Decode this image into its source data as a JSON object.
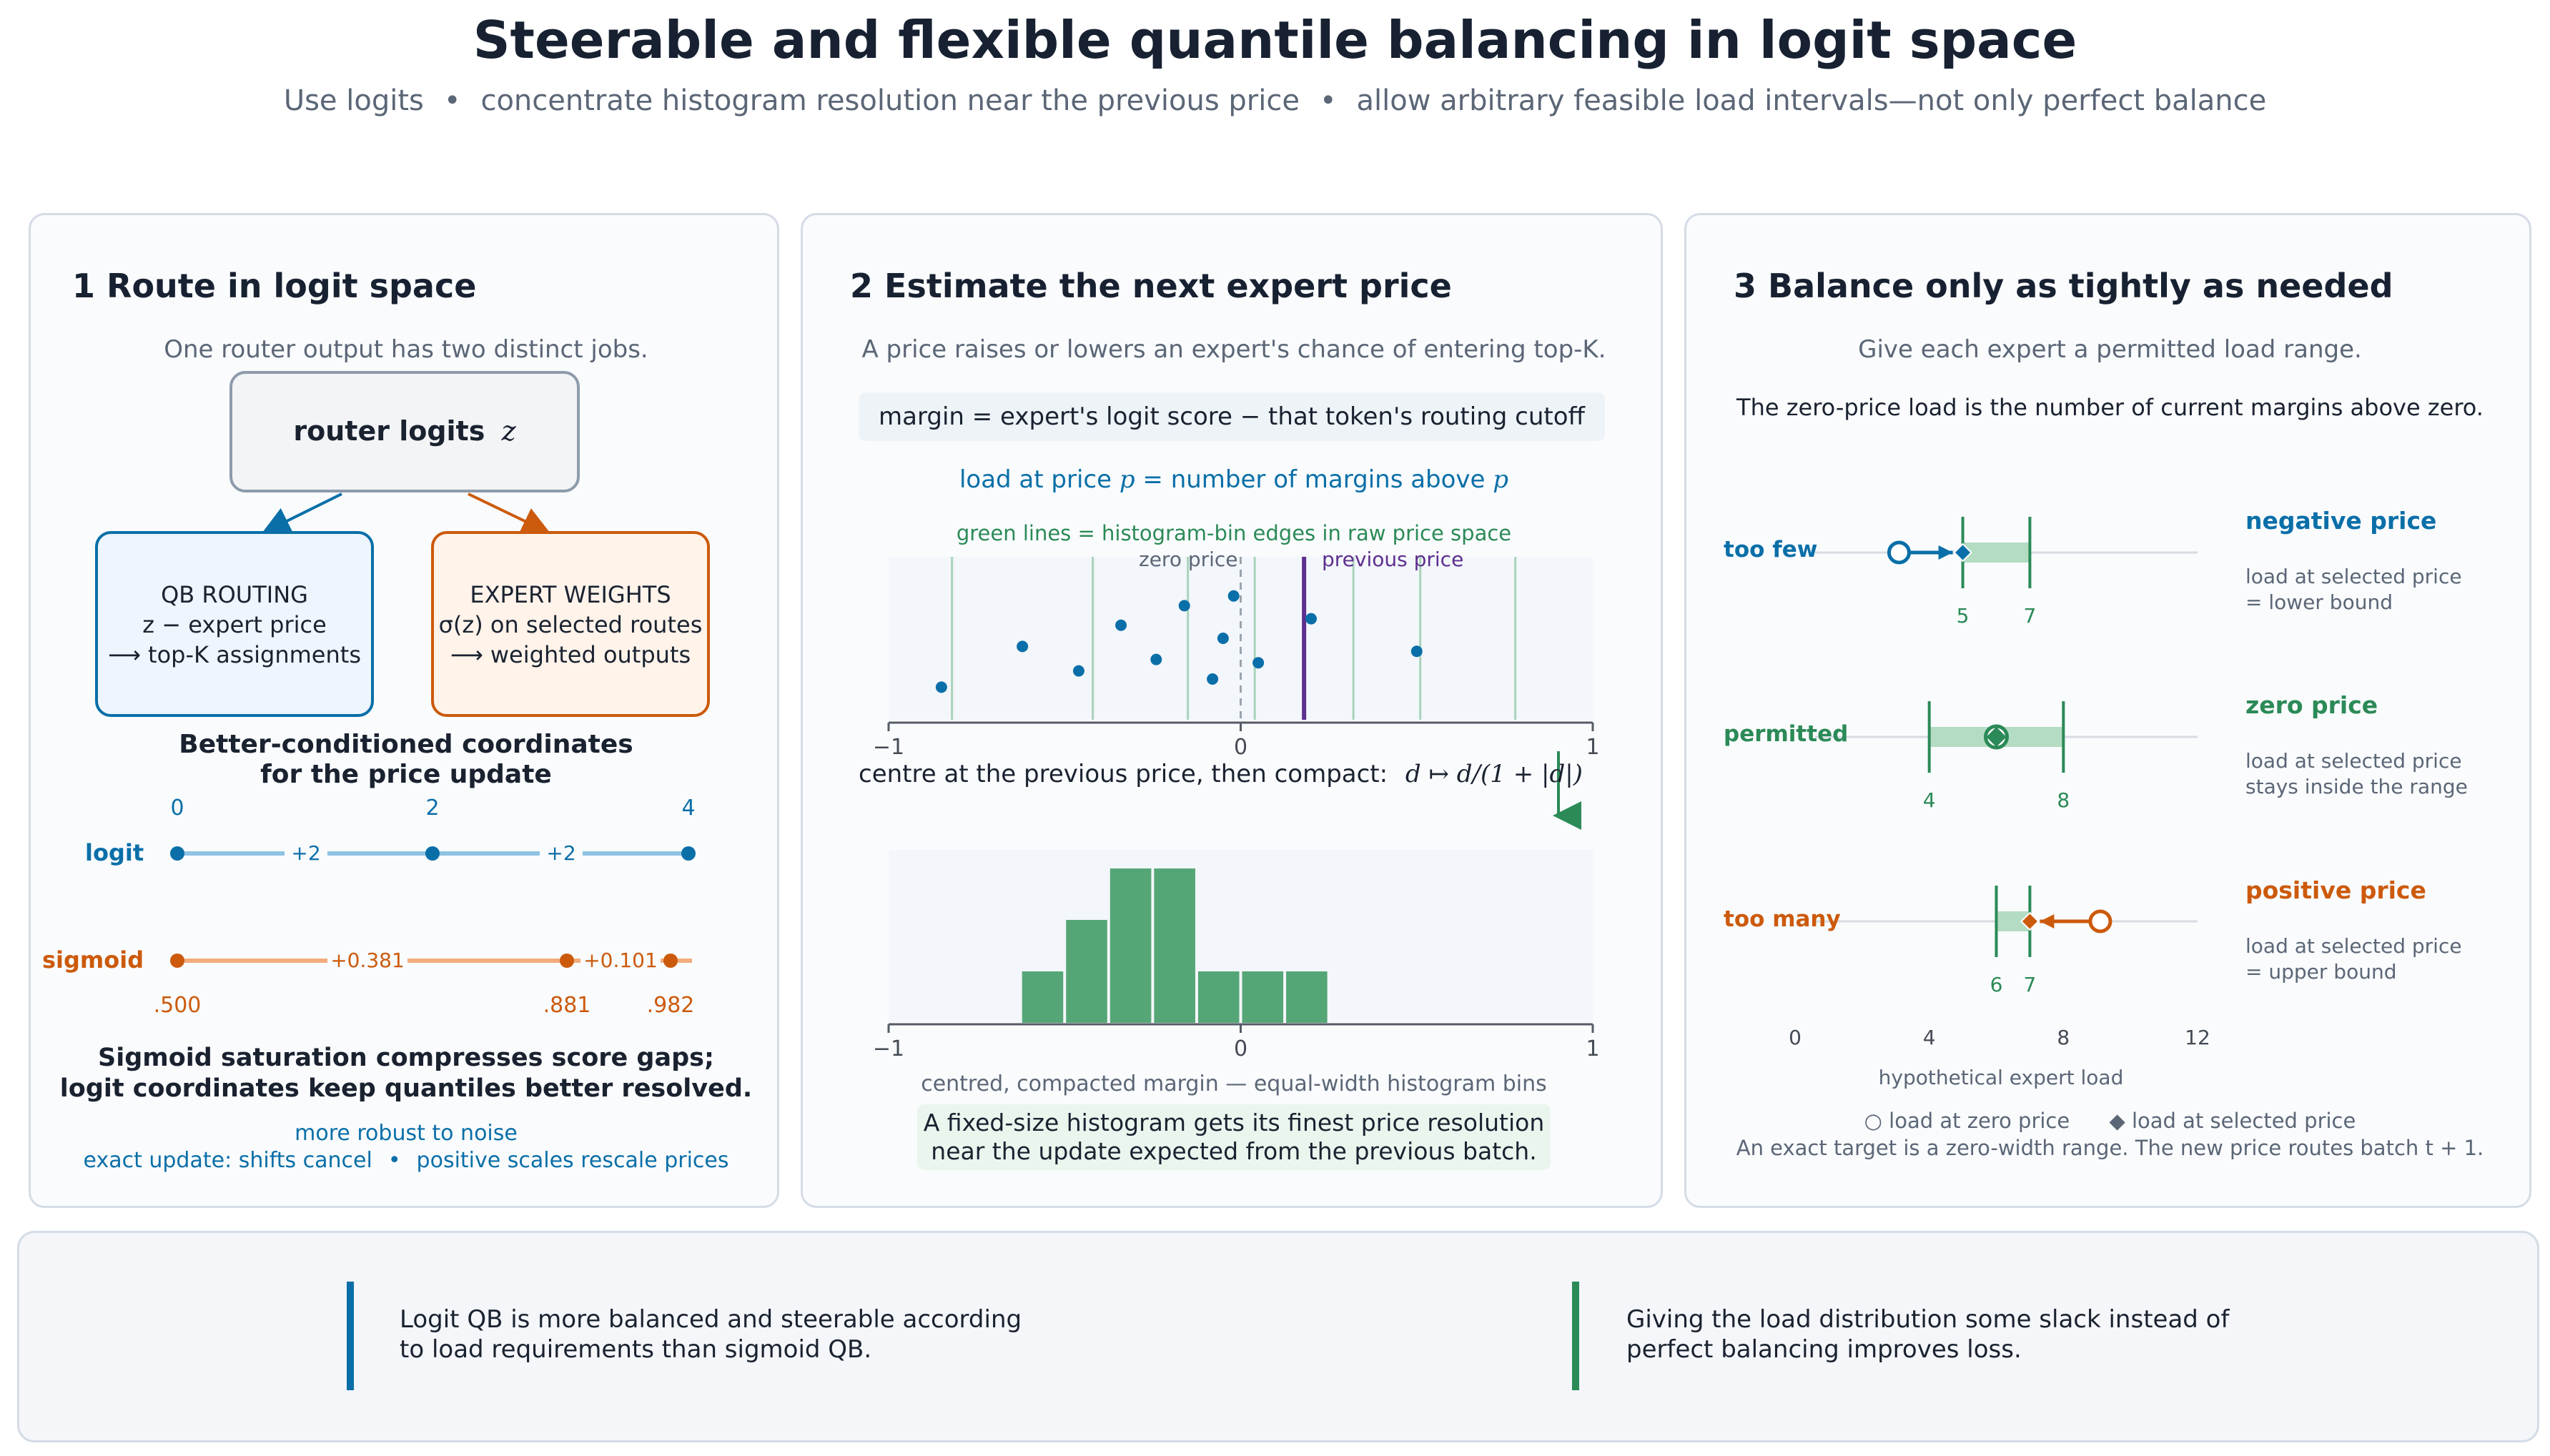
{
  "title": "Steerable and flexible quantile balancing in logit space",
  "subtitle": {
    "parts": [
      "Use logits",
      "concentrate histogram resolution near the previous price",
      "allow arbitrary feasible load intervals—not only perfect balance"
    ],
    "separator": "•"
  },
  "colors": {
    "blue": "#0a6fa8",
    "orange": "#cc5a0c",
    "green": "#2b8a57",
    "purple": "#5e2f8f",
    "gray": "#5b6676"
  },
  "panel1": {
    "title": "1  Route in logit space",
    "subtitle": "One router output has two distinct jobs.",
    "router_box": {
      "label": "router logits",
      "symbol": "z"
    },
    "qb_box": {
      "line1": "QB ROUTING",
      "line2": "z − expert price",
      "line3": "⟶ top-K assignments"
    },
    "expert_box": {
      "line1": "EXPERT WEIGHTS",
      "line2": "σ(z) on selected routes",
      "line3": "⟶ weighted outputs"
    },
    "coord_heading_1": "Better-conditioned coordinates",
    "coord_heading_2": "for the price update",
    "logit_label": "logit",
    "sigmoid_label": "sigmoid",
    "logit_values": [
      "0",
      "2",
      "4"
    ],
    "logit_gaps": [
      "+2",
      "+2"
    ],
    "sigmoid_values": [
      ".500",
      ".881",
      ".982"
    ],
    "sigmoid_gaps": [
      "+0.381",
      "+0.101"
    ],
    "bottom_1": "Sigmoid saturation compresses score gaps;",
    "bottom_2": "logit coordinates keep quantiles better resolved.",
    "note_1": "more robust to noise",
    "note_2a": "exact update: shifts cancel",
    "note_2b": "positive scales rescale prices"
  },
  "panel2": {
    "title": "2  Estimate the next expert price",
    "subtitle": "A price raises or lowers an expert's chance of entering top-K.",
    "margin_def": "margin = expert's logit score − that token's routing cutoff",
    "load_def_pre": "load at price ",
    "load_def_p1": "p",
    "load_def_mid": " = number of margins above ",
    "load_def_p2": "p",
    "green_caption": "green lines = histogram-bin edges in raw price space",
    "zero_label": "zero price",
    "prev_label": "previous price",
    "compact_text": "centre at the previous price, then compact:",
    "compact_formula": "d ↦ d/(1 + |d|)",
    "hist_caption": "centred, compacted margin — equal-width histogram bins",
    "hist_note_1": "A fixed-size histogram gets its finest price resolution",
    "hist_note_2": "near the update expected from the previous batch.",
    "axis_ticks": [
      "−1",
      "0",
      "1"
    ]
  },
  "panel3": {
    "title": "3  Balance only as tightly as needed",
    "subtitle": "Give each expert a permitted load range.",
    "zero_load_note": "The zero-price load is the number of current margins above zero.",
    "rows": [
      {
        "label": "too few",
        "lower": "5",
        "upper": "7",
        "zero_load": 3.1,
        "selected_load": 5,
        "range": [
          5,
          7
        ],
        "heading": "negative price",
        "desc1": "load at selected price",
        "desc2": "= lower bound"
      },
      {
        "label": "permitted",
        "lower": "4",
        "upper": "8",
        "zero_load": 6,
        "selected_load": 6,
        "range": [
          4,
          8
        ],
        "heading": "zero price",
        "desc1": "load at selected price",
        "desc2": "stays inside the range"
      },
      {
        "label": "too many",
        "lower": "6",
        "upper": "7",
        "zero_load": 9.1,
        "selected_load": 7,
        "range": [
          6,
          7
        ],
        "heading": "positive price",
        "desc1": "load at selected price",
        "desc2": "= upper bound"
      }
    ],
    "axis_ticks": [
      "0",
      "4",
      "8",
      "12"
    ],
    "axis_label": "hypothetical expert load",
    "legend_zero": "○ load at zero price",
    "legend_selected": "◆ load at selected price",
    "footnote": "An exact target is a zero-width range. The new price routes batch t + 1."
  },
  "footer": {
    "left_1": "Logit QB is more balanced and steerable according",
    "left_2": "to load requirements than sigmoid QB.",
    "right_1": "Giving the load distribution some slack instead of",
    "right_2": "perfect balancing improves loss."
  },
  "chart_data": [
    {
      "type": "scatter",
      "title": "",
      "xlabel": "",
      "ylabel": "",
      "xlim": [
        -1,
        1
      ],
      "x": [
        -0.85,
        -0.62,
        -0.46,
        -0.34,
        -0.24,
        -0.16,
        -0.05,
        -0.02,
        -0.08,
        0.05,
        0.2,
        0.5
      ],
      "y": [
        0.2,
        0.45,
        0.3,
        0.58,
        0.37,
        0.7,
        0.5,
        0.76,
        0.25,
        0.35,
        0.62,
        0.42
      ],
      "vlines": {
        "zero_price": 0,
        "previous_price": 0.18,
        "bin_edges": [
          -0.82,
          -0.42,
          -0.15,
          0.04,
          0.32,
          0.51,
          0.78
        ]
      }
    },
    {
      "type": "bar",
      "title": "",
      "xlabel": "centred, compacted margin — equal-width histogram bins",
      "xlim": [
        -1,
        1
      ],
      "bin_edges": [
        -0.625,
        -0.5,
        -0.375,
        -0.25,
        -0.125,
        0,
        0.125,
        0.25
      ],
      "values": [
        1,
        2,
        3,
        3,
        1,
        1,
        1
      ]
    }
  ]
}
